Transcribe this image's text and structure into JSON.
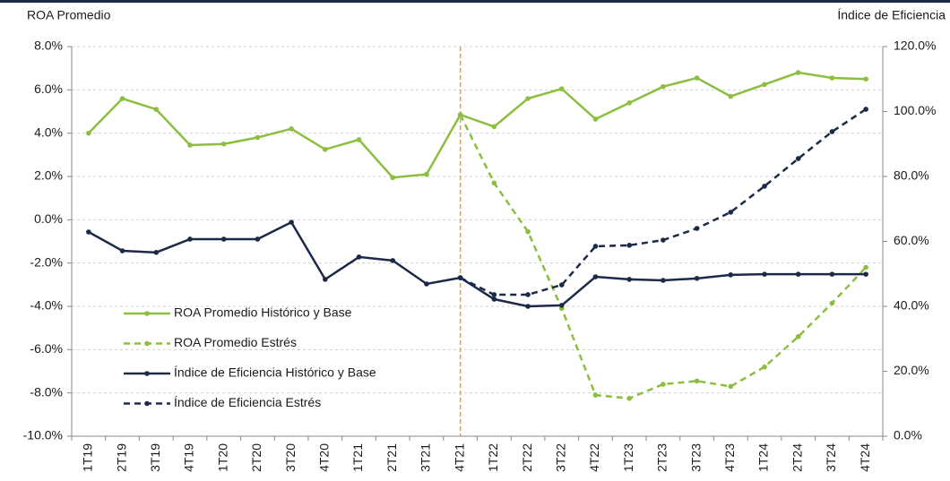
{
  "chart_data": {
    "type": "line",
    "y_axis_title": "ROA Promedio",
    "y2_axis_title": "Índice de Eficiencia",
    "categories": [
      "1T19",
      "2T19",
      "3T19",
      "4T19",
      "1T20",
      "2T20",
      "3T20",
      "4T20",
      "1T21",
      "2T21",
      "3T21",
      "4T21",
      "1T22",
      "2T22",
      "3T22",
      "4T22",
      "1T23",
      "2T23",
      "3T23",
      "4T23",
      "1T24",
      "2T24",
      "3T24",
      "4T24"
    ],
    "series": [
      {
        "name": "ROA Promedio Histórico y Base",
        "color": "#8cbe3f",
        "dash": false,
        "axis": "y",
        "values": [
          4.0,
          5.6,
          5.1,
          3.45,
          3.5,
          3.8,
          4.2,
          3.25,
          3.7,
          1.95,
          2.1,
          4.85,
          4.3,
          5.6,
          6.05,
          4.65,
          5.4,
          6.15,
          6.55,
          5.7,
          6.25,
          6.8,
          6.55,
          6.5
        ]
      },
      {
        "name": "ROA Promedio Estrés",
        "color": "#8cbe3f",
        "dash": true,
        "axis": "y",
        "values": [
          null,
          null,
          null,
          null,
          null,
          null,
          null,
          null,
          null,
          null,
          null,
          4.85,
          1.7,
          -0.55,
          -4.1,
          -8.1,
          -8.25,
          -7.6,
          -7.45,
          -7.7,
          -6.8,
          -5.4,
          -3.85,
          -2.2
        ]
      },
      {
        "name": "Índice de Eficiencia Histórico y Base",
        "color": "#1c2a48",
        "dash": false,
        "axis": "y2",
        "values": [
          62.9,
          57.1,
          56.6,
          60.7,
          60.7,
          60.7,
          65.9,
          48.3,
          55.2,
          54.1,
          46.9,
          48.8,
          42.2,
          40.0,
          40.3,
          49.1,
          48.3,
          48.0,
          48.6,
          49.7,
          49.9,
          49.9,
          49.9,
          49.9
        ]
      },
      {
        "name": "Índice de Eficiencia Estrés",
        "color": "#1c2a48",
        "dash": true,
        "axis": "y2",
        "values": [
          null,
          null,
          null,
          null,
          null,
          null,
          null,
          null,
          null,
          null,
          null,
          48.8,
          43.6,
          43.6,
          46.6,
          58.5,
          58.8,
          60.4,
          64.0,
          69.0,
          77.0,
          85.5,
          93.8,
          100.7
        ]
      }
    ],
    "ylim": [
      -10,
      8
    ],
    "yticks": [
      {
        "value": 8,
        "label": "8.0%"
      },
      {
        "value": 6,
        "label": "6.0%"
      },
      {
        "value": 4,
        "label": "4.0%"
      },
      {
        "value": 2,
        "label": "2.0%"
      },
      {
        "value": 0,
        "label": "0.0%"
      },
      {
        "value": -2,
        "label": "-2.0%"
      },
      {
        "value": -4,
        "label": "-4.0%"
      },
      {
        "value": -6,
        "label": "-6.0%"
      },
      {
        "value": -8,
        "label": "-8.0%"
      },
      {
        "value": -10,
        "label": "-10.0%"
      }
    ],
    "y2lim": [
      0,
      120
    ],
    "y2ticks": [
      {
        "value": 120,
        "label": "120.0%"
      },
      {
        "value": 100,
        "label": "100.0%"
      },
      {
        "value": 80,
        "label": "80.0%"
      },
      {
        "value": 60,
        "label": "60.0%"
      },
      {
        "value": 40,
        "label": "40.0%"
      },
      {
        "value": 20,
        "label": "20.0%"
      },
      {
        "value": 0,
        "label": "0.0%"
      }
    ],
    "grid": true,
    "legend": "left",
    "divider_color": "#f0a030"
  }
}
